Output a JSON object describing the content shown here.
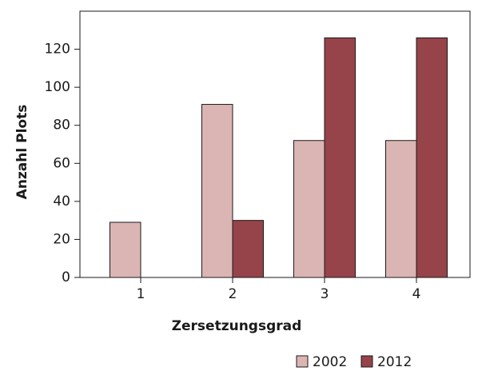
{
  "chart_data": {
    "type": "bar",
    "x_label": "Zersetzungsgrad",
    "y_label": "Anzahl Plots",
    "categories": [
      "1",
      "2",
      "3",
      "4"
    ],
    "series": [
      {
        "name": "2002",
        "color": "#dbb5b3",
        "values": [
          29,
          91,
          72,
          72
        ]
      },
      {
        "name": "2012",
        "color": "#96434a",
        "values": [
          0,
          30,
          126,
          126
        ]
      }
    ],
    "ylim": [
      0,
      140
    ],
    "yticks": [
      0,
      20,
      40,
      60,
      80,
      100,
      120
    ],
    "grid": false,
    "legend": "bottom"
  }
}
